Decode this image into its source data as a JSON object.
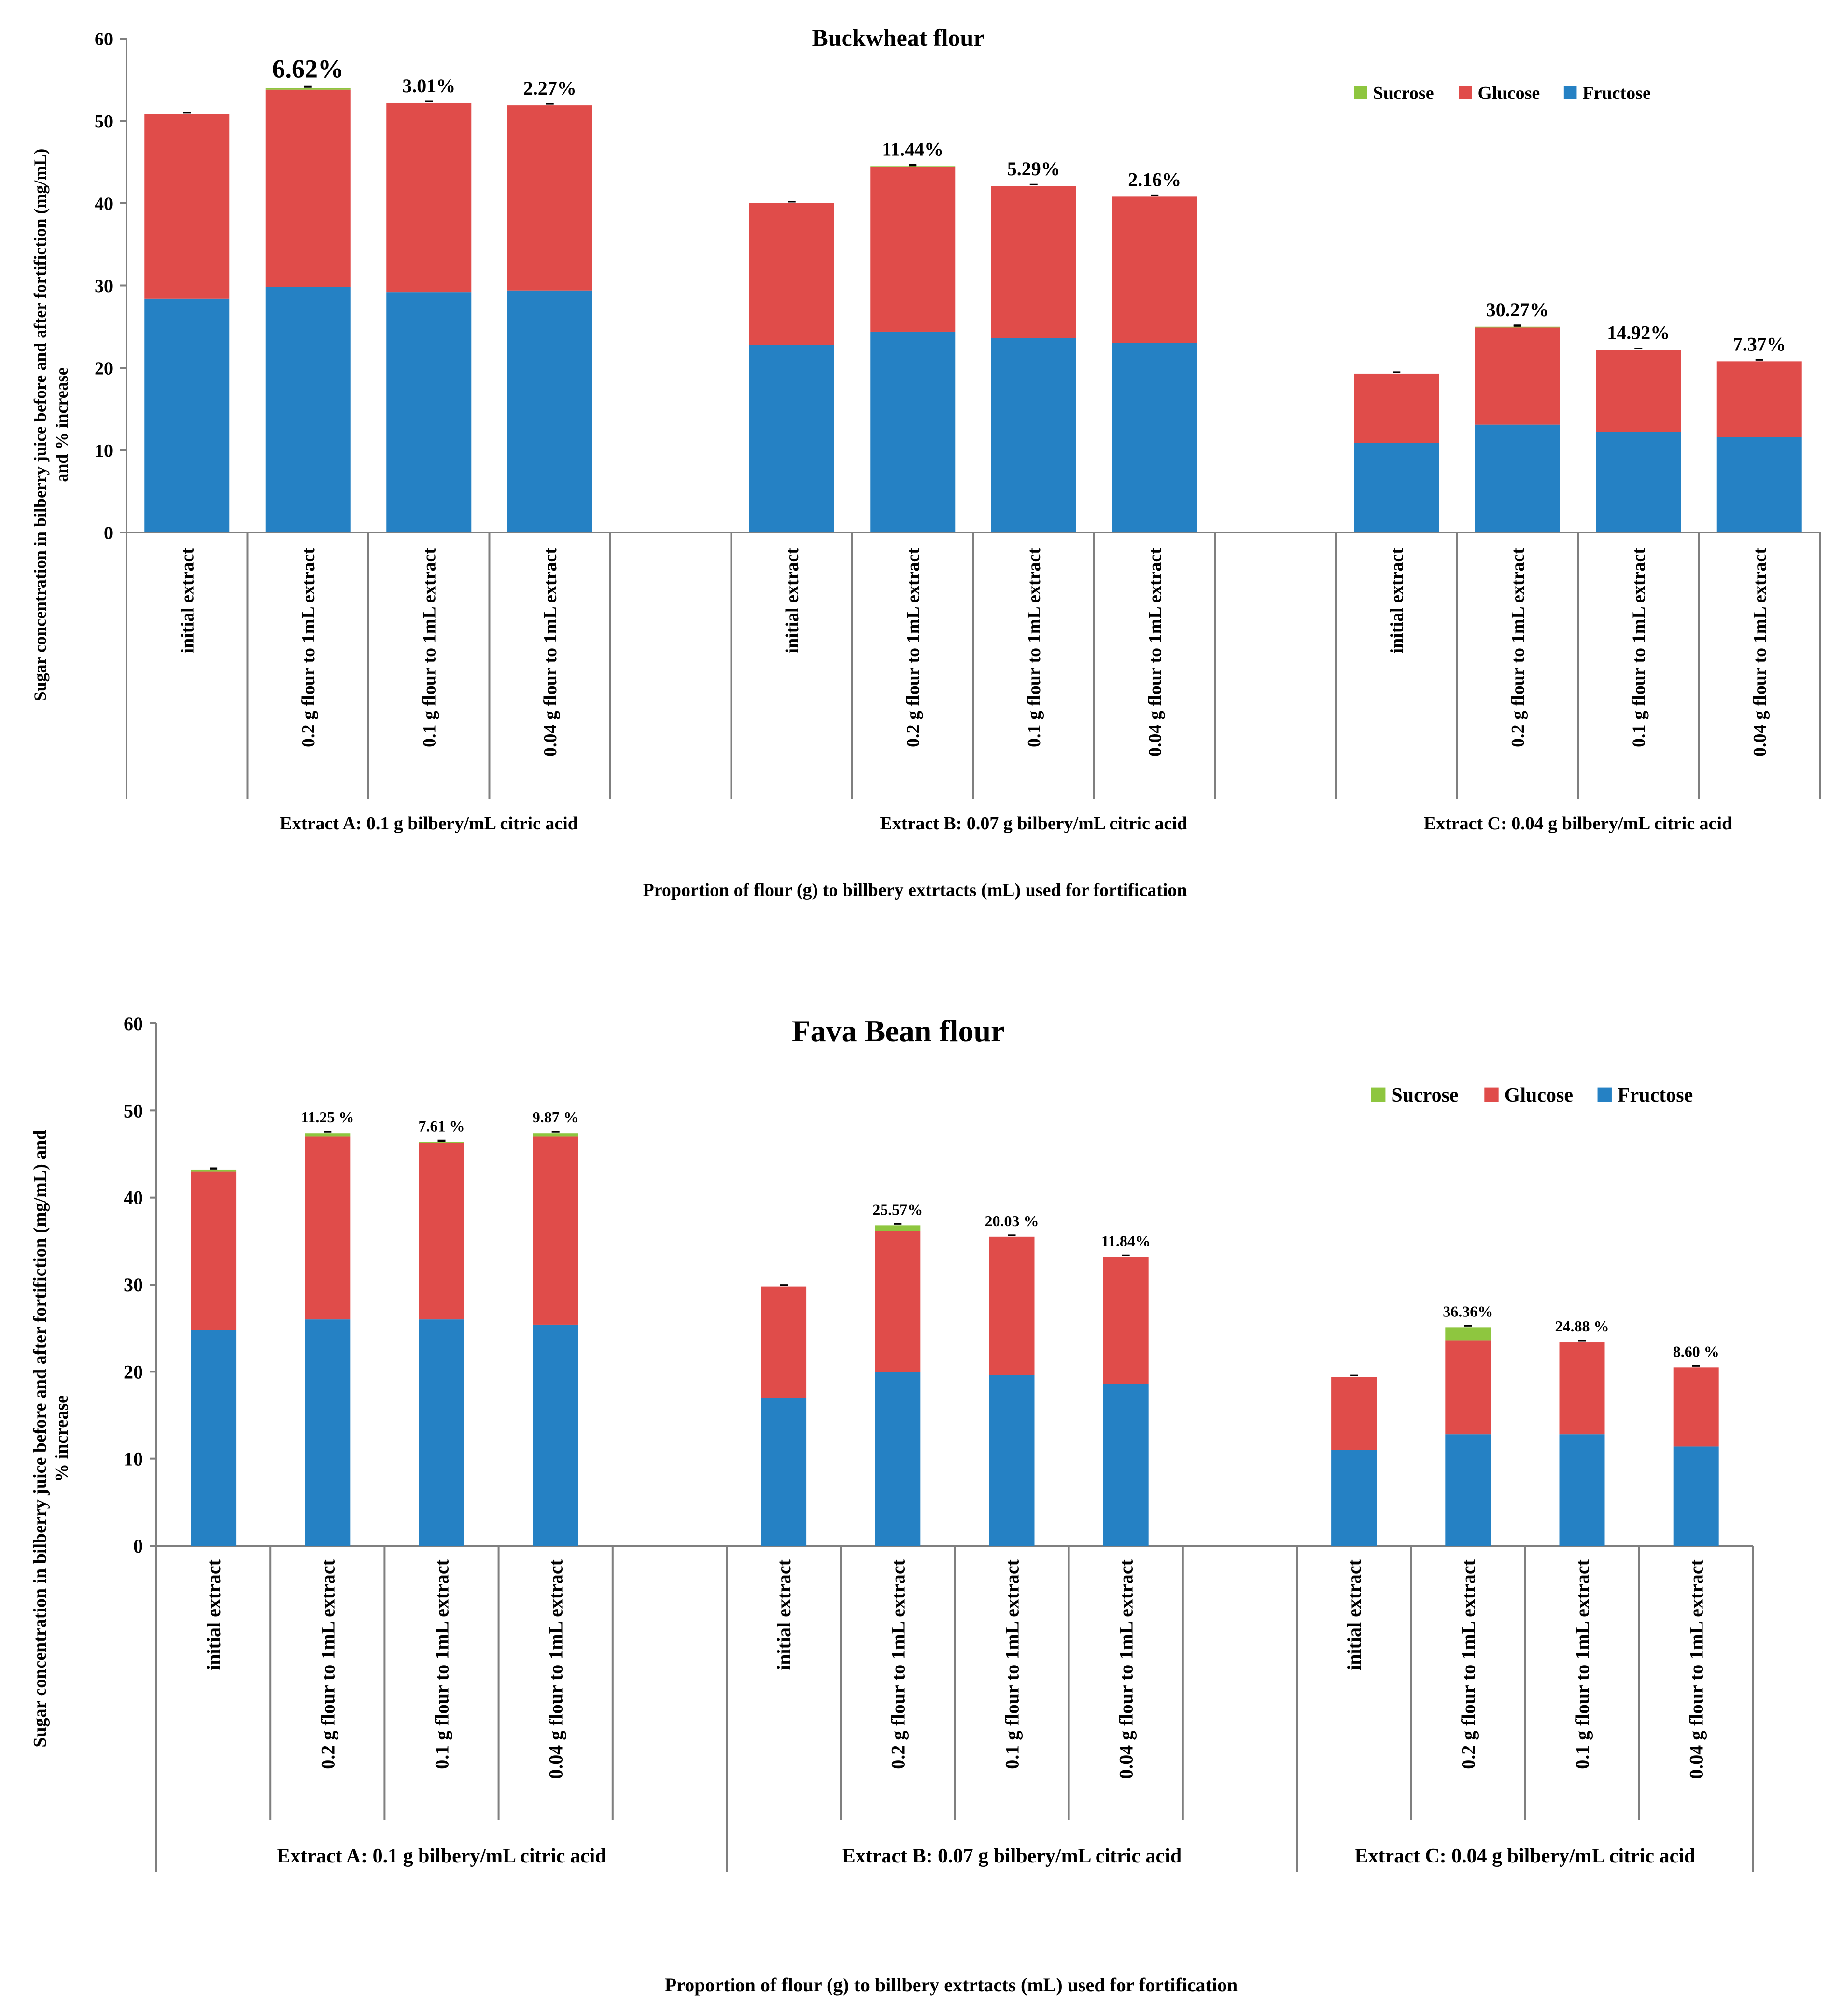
{
  "chart_data": [
    {
      "type": "bar",
      "stacked": true,
      "title": "Buckwheat flour",
      "ylabel": "Sugar concentration in  bilberry juice before and  after fortifiction (mg/mL)",
      "ylabel2": "and % increase",
      "xlabel": "Proportion of flour (g) to billbery extrtacts (mL) used for fortification",
      "ylim": [
        0,
        60
      ],
      "yticks": [
        0,
        10,
        20,
        30,
        40,
        50,
        60
      ],
      "grid": false,
      "legend": [
        "Sucrose",
        "Glucose",
        "Fructose"
      ],
      "legend_position": "top-right",
      "groups": [
        "Extract A: 0.1 g bilbery/mL citric acid",
        "Extract B: 0.07 g bilbery/mL citric acid",
        "Extract C: 0.04 g bilbery/mL citric acid"
      ],
      "categories": [
        "initial extract",
        "0.2 g flour to 1mL extract",
        "0.1 g flour to 1mL extract",
        "0.04 g flour to 1mL extract",
        "initial extract",
        "0.2 g flour to 1mL extract",
        "0.1 g flour to 1mL extract",
        "0.04 g flour to 1mL extract",
        "initial extract",
        "0.2 g flour to 1mL extract",
        "0.1 g flour to 1mL extract",
        "0.04 g flour to 1mL extract"
      ],
      "series": [
        {
          "name": "Fructose",
          "color": "#2581c4",
          "values": [
            28.4,
            29.8,
            29.2,
            29.4,
            22.8,
            24.4,
            23.6,
            23.0,
            10.9,
            13.1,
            12.2,
            11.6
          ]
        },
        {
          "name": "Glucose",
          "color": "#e04c4a",
          "values": [
            22.4,
            24.0,
            23.0,
            22.5,
            17.2,
            20.0,
            18.5,
            17.8,
            8.4,
            11.8,
            10.0,
            9.2
          ]
        },
        {
          "name": "Sucrose",
          "color": "#8ec63f",
          "values": [
            0,
            0.2,
            0,
            0,
            0,
            0.1,
            0,
            0,
            0,
            0.1,
            0,
            0
          ]
        }
      ],
      "annotations": [
        "",
        "6.62%",
        "3.01%",
        "2.27%",
        "",
        "11.44%",
        "5.29%",
        "2.16%",
        "",
        "30.27%",
        "14.92%",
        "7.37%"
      ]
    },
    {
      "type": "bar",
      "stacked": true,
      "title": "Fava Bean flour",
      "ylabel": "Sugar concentration in  bilberry juice before and  after fortifiction (mg/mL) and",
      "ylabel2": "% increase",
      "xlabel": "Proportion of flour (g) to billbery extrtacts (mL) used for fortification",
      "ylim": [
        0,
        60
      ],
      "yticks": [
        0,
        10,
        20,
        30,
        40,
        50,
        60
      ],
      "grid": false,
      "legend": [
        "Sucrose",
        "Glucose",
        "Fructose"
      ],
      "legend_position": "top-right",
      "groups": [
        "Extract A: 0.1 g bilbery/mL citric acid",
        "Extract B: 0.07 g bilbery/mL citric acid",
        "Extract C: 0.04 g bilbery/mL citric acid"
      ],
      "categories": [
        "initial extract",
        "0.2 g flour to 1mL extract",
        "0.1 g flour to 1mL extract",
        "0.04 g flour to 1mL extract",
        "initial extract",
        "0.2 g flour to 1mL extract",
        "0.1 g flour to 1mL extract",
        "0.04 g flour to 1mL extract",
        "initial extract",
        "0.2 g flour to 1mL extract",
        "0.1 g flour to 1mL extract",
        "0.04 g flour to 1mL extract"
      ],
      "series": [
        {
          "name": "Fructose",
          "color": "#2581c4",
          "values": [
            24.8,
            26.0,
            26.0,
            25.4,
            17.0,
            20.0,
            19.6,
            18.6,
            11.0,
            12.8,
            12.8,
            11.4
          ]
        },
        {
          "name": "Glucose",
          "color": "#e04c4a",
          "values": [
            18.2,
            21.0,
            20.3,
            21.6,
            12.8,
            16.2,
            15.9,
            14.6,
            8.4,
            10.8,
            10.6,
            9.1
          ]
        },
        {
          "name": "Sucrose",
          "color": "#8ec63f",
          "values": [
            0.2,
            0.4,
            0.1,
            0.4,
            0,
            0.6,
            0,
            0,
            0,
            1.5,
            0,
            0
          ]
        }
      ],
      "annotations": [
        "",
        "11.25 %",
        "7.61 %",
        "9.87 %",
        "",
        "25.57%",
        "20.03 %",
        "11.84%",
        "",
        "36.36%",
        "24.88 %",
        "8.60 %"
      ]
    }
  ]
}
